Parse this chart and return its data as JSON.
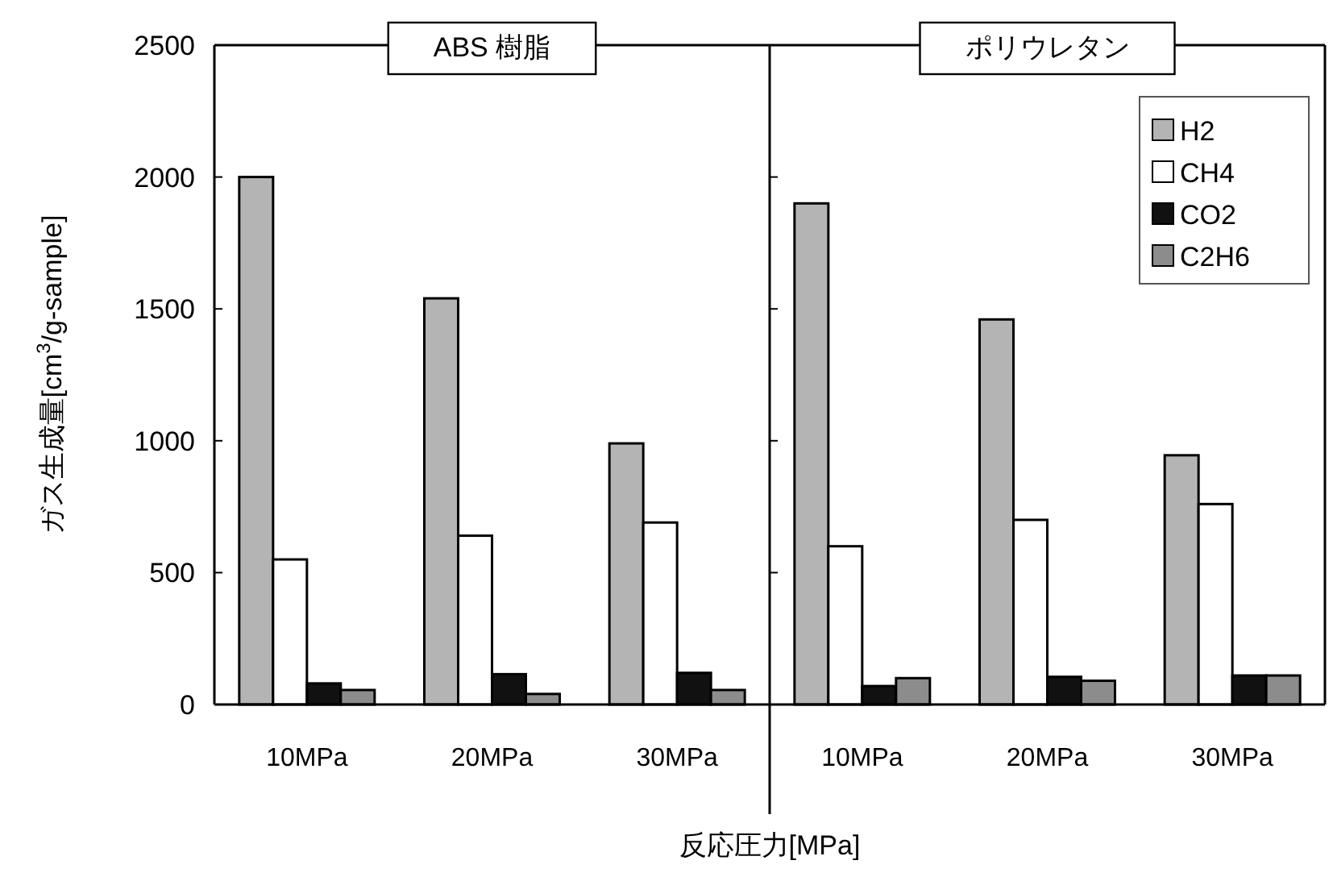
{
  "chart_data": [
    {
      "type": "bar",
      "title": "ABS 樹脂",
      "xlabel": "反応圧力[MPa]",
      "ylabel": "ガス生成量[cm$^{3}$/g-sample]",
      "categories": [
        "10MPa",
        "20MPa",
        "30MPa"
      ],
      "series": [
        {
          "color": "#b4b4b4",
          "values": [
            2000,
            1540,
            990
          ]
        },
        {
          "color": "#ffffff",
          "values": [
            550,
            640,
            690
          ]
        },
        {
          "color": "#111111",
          "values": [
            80,
            115,
            120
          ]
        },
        {
          "color": "#8c8c8c",
          "values": [
            55,
            40,
            55
          ]
        }
      ],
      "ylim": [
        0,
        2500
      ],
      "yticks": [
        0,
        500,
        1000,
        1500,
        2000,
        2500
      ],
      "legend": false
    },
    {
      "type": "bar",
      "title": "ポリウレタン",
      "categories": [
        "10MPa",
        "20MPa",
        "30MPa"
      ],
      "series": [
        {
          "name": "H2",
          "color": "#b4b4b4",
          "values": [
            1900,
            1460,
            945
          ]
        },
        {
          "name": "CH4",
          "color": "#ffffff",
          "values": [
            600,
            700,
            760
          ]
        },
        {
          "name": "CO2",
          "color": "#111111",
          "values": [
            70,
            105,
            110
          ]
        },
        {
          "name": "C2H6",
          "color": "#8c8c8c",
          "values": [
            100,
            90,
            110
          ]
        }
      ],
      "ylim": [
        0,
        2500
      ],
      "yticks": [
        0,
        500,
        1000,
        1500,
        2000,
        2500
      ],
      "tick_labels": "x",
      "legend": "top right"
    }
  ]
}
